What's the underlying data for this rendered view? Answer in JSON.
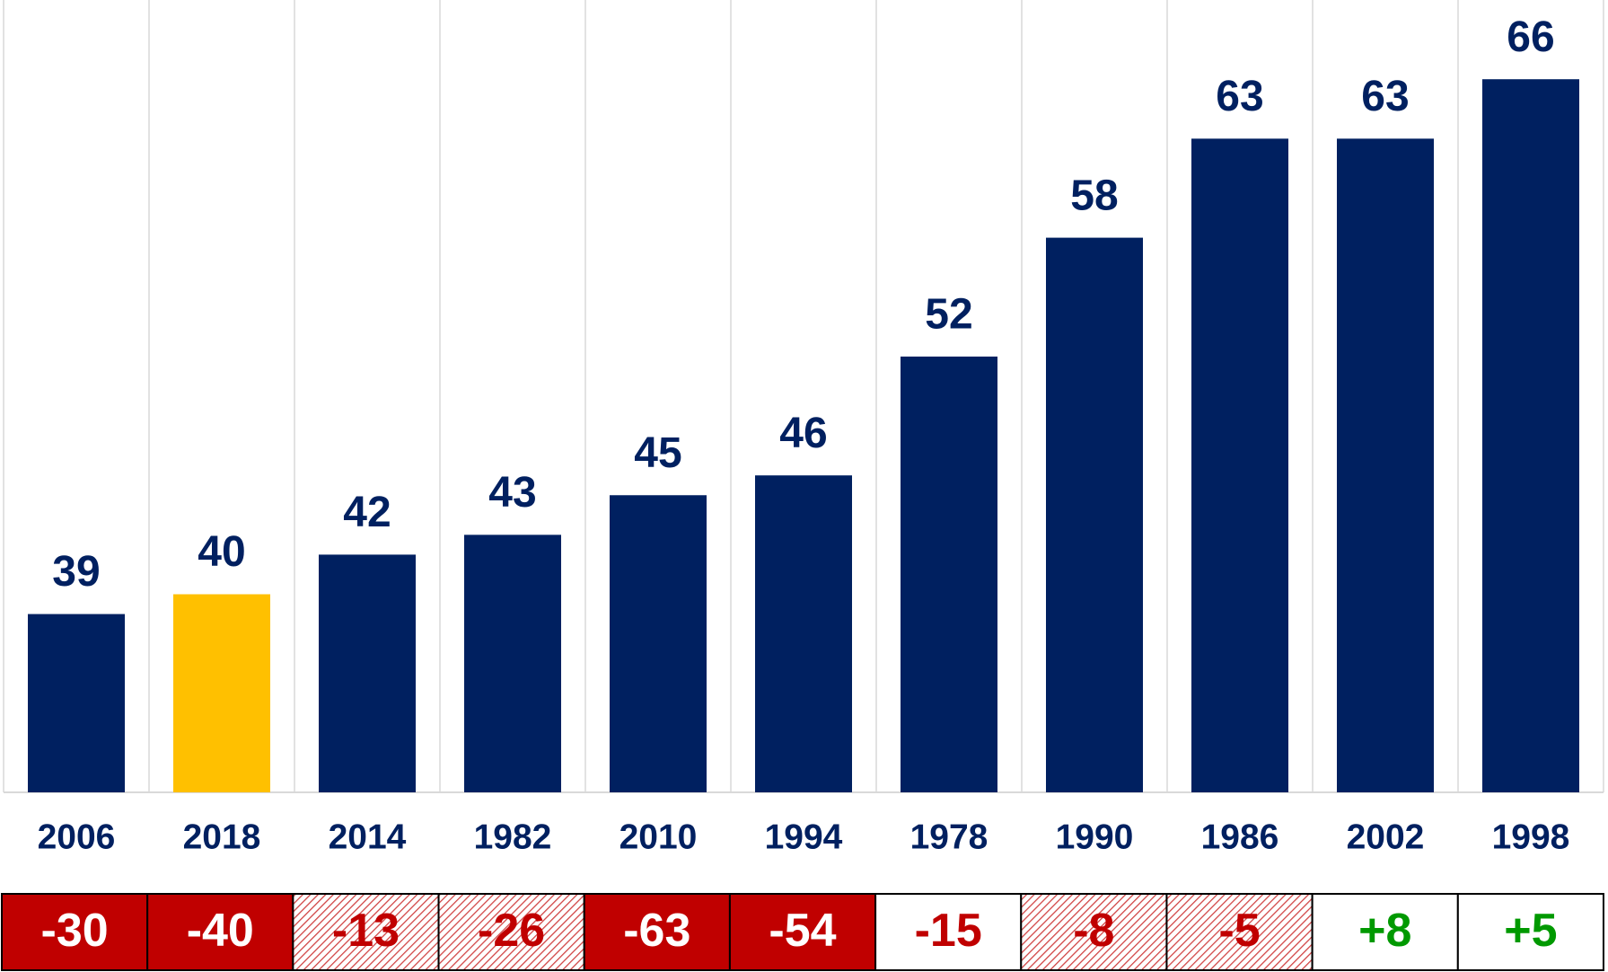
{
  "chart_data": {
    "type": "bar",
    "categories": [
      "2006",
      "2018",
      "2014",
      "1982",
      "2010",
      "1994",
      "1978",
      "1990",
      "1986",
      "2002",
      "1998"
    ],
    "values": [
      39,
      40,
      42,
      43,
      45,
      46,
      52,
      58,
      63,
      63,
      66
    ],
    "colors": [
      "#002060",
      "#FFC000",
      "#002060",
      "#002060",
      "#002060",
      "#002060",
      "#002060",
      "#002060",
      "#002060",
      "#002060",
      "#002060"
    ],
    "ylim": [
      30,
      70
    ],
    "grid": true,
    "change_row": {
      "values": [
        -30,
        -40,
        -13,
        -26,
        -63,
        -54,
        -15,
        -8,
        -5,
        8,
        5
      ],
      "value_labels": [
        "-30",
        "-40",
        "-13",
        "-26",
        "-63",
        "-54",
        "-15",
        "-8",
        "-5",
        "+8",
        "+5"
      ],
      "styles": [
        "solid",
        "solid",
        "hatched",
        "hatched",
        "solid",
        "solid",
        "plain",
        "hatched",
        "hatched",
        "plain",
        "plain"
      ]
    }
  }
}
